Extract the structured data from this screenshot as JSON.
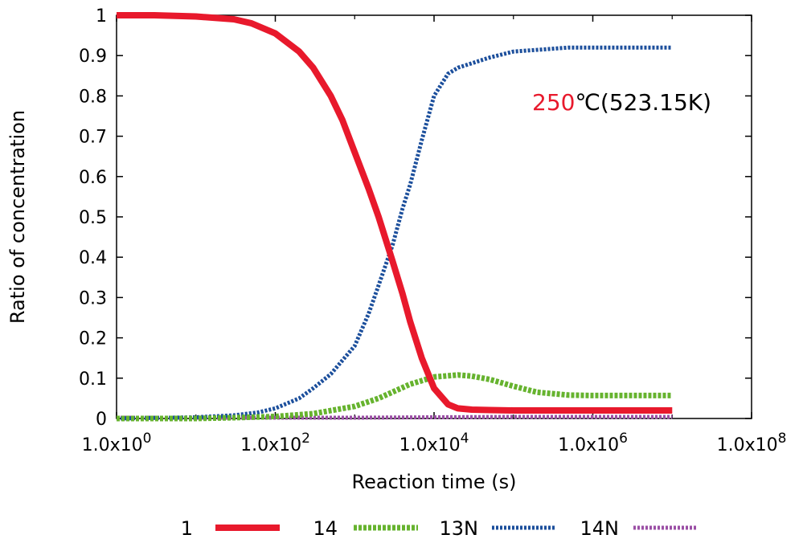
{
  "chart_data": {
    "type": "line",
    "xlabel": "Reaction time (s)",
    "ylabel": "Ratio of concentration",
    "xscale": "log",
    "xlim": [
      1,
      100000000
    ],
    "ylim": [
      0,
      1
    ],
    "x_ticks": [
      {
        "value": 1,
        "base": "1.0x10",
        "exp": "0"
      },
      {
        "value": 100,
        "base": "1.0x10",
        "exp": "2"
      },
      {
        "value": 10000,
        "base": "1.0x10",
        "exp": "4"
      },
      {
        "value": 1000000,
        "base": "1.0x10",
        "exp": "6"
      },
      {
        "value": 100000000,
        "base": "1.0x10",
        "exp": "8"
      }
    ],
    "y_ticks": [
      "0",
      "0.1",
      "0.2",
      "0.3",
      "0.4",
      "0.5",
      "0.6",
      "0.7",
      "0.8",
      "0.9",
      "1"
    ],
    "grid": false,
    "legend_position": "bottom",
    "annotation": {
      "highlight": "250",
      "rest": "℃(523.15K)",
      "highlight_color": "#e8192c",
      "rest_color": "#000000"
    },
    "series": [
      {
        "name": "1",
        "color": "#e8192c",
        "style": "solid",
        "x": [
          1,
          3,
          10,
          30,
          50,
          100,
          200,
          300,
          500,
          700,
          1000,
          1500,
          2000,
          3000,
          4000,
          5000,
          7000,
          10000,
          15000,
          20000,
          30000,
          50000,
          100000,
          1000000,
          10000000
        ],
        "y": [
          1.0,
          1.0,
          0.997,
          0.99,
          0.98,
          0.955,
          0.91,
          0.87,
          0.8,
          0.74,
          0.66,
          0.57,
          0.5,
          0.39,
          0.31,
          0.24,
          0.15,
          0.075,
          0.035,
          0.025,
          0.022,
          0.021,
          0.02,
          0.02,
          0.02
        ]
      },
      {
        "name": "14",
        "color": "#66b32e",
        "style": "dashed",
        "x": [
          1,
          10,
          30,
          100,
          300,
          1000,
          2000,
          5000,
          10000,
          20000,
          30000,
          50000,
          100000,
          200000,
          500000,
          1000000,
          10000000
        ],
        "y": [
          0.0,
          0.0,
          0.002,
          0.005,
          0.012,
          0.03,
          0.05,
          0.085,
          0.103,
          0.108,
          0.105,
          0.097,
          0.08,
          0.065,
          0.058,
          0.057,
          0.057
        ]
      },
      {
        "name": "13N",
        "color": "#1c4f9c",
        "style": "dotted",
        "x": [
          1,
          10,
          30,
          60,
          100,
          200,
          300,
          500,
          1000,
          1500,
          2000,
          3000,
          4000,
          5000,
          7000,
          10000,
          15000,
          20000,
          50000,
          100000,
          500000,
          1000000,
          10000000
        ],
        "y": [
          0.0,
          0.003,
          0.008,
          0.015,
          0.025,
          0.05,
          0.075,
          0.11,
          0.18,
          0.26,
          0.33,
          0.43,
          0.52,
          0.58,
          0.69,
          0.8,
          0.855,
          0.87,
          0.895,
          0.91,
          0.92,
          0.92,
          0.92
        ]
      },
      {
        "name": "14N",
        "color": "#9b4fa5",
        "style": "dotted",
        "x": [
          1,
          10,
          100,
          1000,
          10000,
          100000,
          1000000,
          10000000
        ],
        "y": [
          0.002,
          0.002,
          0.002,
          0.002,
          0.003,
          0.004,
          0.004,
          0.004
        ]
      }
    ]
  }
}
